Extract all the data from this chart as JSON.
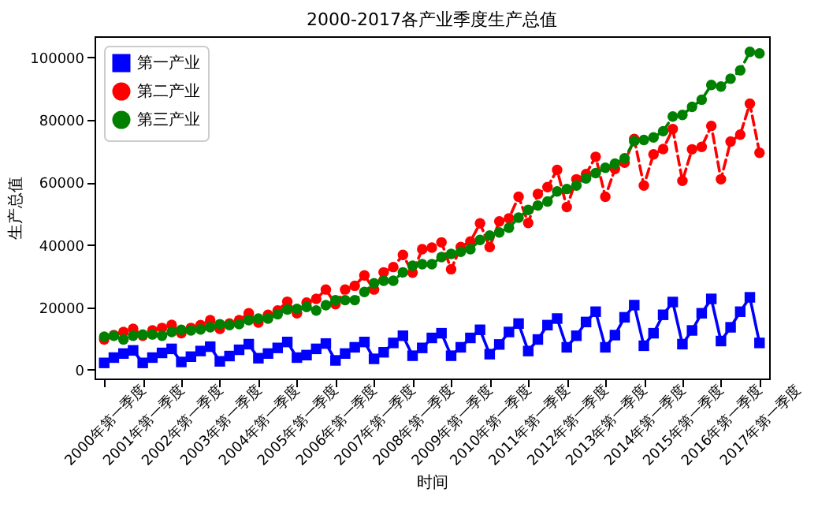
{
  "chart_data": {
    "type": "line",
    "title": "2000-2017各产业季度生产总值",
    "xlabel": "时间",
    "ylabel": "生产总值",
    "categories": [
      "2000年第一季度",
      null,
      null,
      null,
      "2001年第一季度",
      null,
      null,
      null,
      "2002年第一季度",
      null,
      null,
      null,
      "2003年第一季度",
      null,
      null,
      null,
      "2004年第一季度",
      null,
      null,
      null,
      "2005年第一季度",
      null,
      null,
      null,
      "2006年第一季度",
      null,
      null,
      null,
      "2007年第一季度",
      null,
      null,
      null,
      "2008年第一季度",
      null,
      null,
      null,
      "2009年第一季度",
      null,
      null,
      null,
      "2010年第一季度",
      null,
      null,
      null,
      "2011年第一季度",
      null,
      null,
      null,
      "2012年第一季度",
      null,
      null,
      null,
      "2013年第一季度",
      null,
      null,
      null,
      "2014年第一季度",
      null,
      null,
      null,
      "2015年第一季度",
      null,
      null,
      null,
      "2016年第一季度",
      null,
      null,
      null,
      "2017年第一季度"
    ],
    "series": [
      {
        "name": "第一产业",
        "color": "#0000ff",
        "marker": "square",
        "line_style": "solid",
        "values": [
          2200,
          3900,
          5200,
          6200,
          2200,
          3900,
          5400,
          6700,
          2500,
          4200,
          6000,
          7400,
          2700,
          4400,
          6400,
          8200,
          3700,
          5200,
          7000,
          8900,
          3900,
          4700,
          6700,
          8400,
          3000,
          5200,
          7200,
          8900,
          3500,
          5600,
          8600,
          10900,
          4500,
          7000,
          10200,
          11700,
          4500,
          7200,
          10200,
          12800,
          5000,
          8100,
          12100,
          14800,
          6000,
          9700,
          14300,
          16400,
          7200,
          10900,
          15300,
          18600,
          7200,
          11100,
          16800,
          20700,
          7700,
          11700,
          17600,
          21700,
          8200,
          12600,
          18100,
          22700,
          9200,
          13600,
          18600,
          23200,
          8600
        ]
      },
      {
        "name": "第二产业",
        "color": "#ff0000",
        "marker": "circle",
        "line_style": "dashed",
        "values": [
          9700,
          11100,
          12100,
          13100,
          10900,
          12600,
          13400,
          14400,
          11700,
          13400,
          14300,
          15900,
          13100,
          14800,
          15900,
          18100,
          15100,
          17600,
          19000,
          21800,
          18100,
          21500,
          22700,
          25700,
          21000,
          25700,
          26900,
          30200,
          25700,
          31200,
          32900,
          36800,
          31100,
          38600,
          39100,
          40800,
          32200,
          39300,
          41100,
          46900,
          39300,
          47500,
          48500,
          55400,
          47000,
          56300,
          58500,
          64000,
          52100,
          61000,
          62700,
          68200,
          55400,
          64300,
          66300,
          73900,
          59000,
          69000,
          70700,
          77100,
          60500,
          70600,
          71400,
          78100,
          61000,
          73100,
          75300,
          85200,
          69500
        ]
      },
      {
        "name": "第三产业",
        "color": "#008000",
        "marker": "circle",
        "line_style": "dashed",
        "values": [
          10600,
          10900,
          9700,
          10900,
          11300,
          11300,
          10900,
          12100,
          12800,
          12600,
          12900,
          13600,
          14600,
          14300,
          14600,
          15900,
          16400,
          16400,
          17800,
          19300,
          19500,
          20100,
          19000,
          20700,
          22300,
          22300,
          22300,
          24900,
          27700,
          28500,
          28500,
          31200,
          33300,
          33800,
          33800,
          36100,
          37100,
          37800,
          38600,
          41600,
          43000,
          44000,
          45500,
          48700,
          51200,
          52600,
          53900,
          57100,
          57900,
          59000,
          61300,
          63000,
          64700,
          66000,
          67700,
          73200,
          73600,
          74400,
          76400,
          81100,
          81600,
          84200,
          86500,
          91200,
          90700,
          93200,
          95900,
          101800,
          101300
        ]
      }
    ],
    "ylim": [
      -2800,
      106800
    ],
    "yticks": [
      0,
      20000,
      40000,
      60000,
      80000,
      100000
    ],
    "grid": false,
    "legend": "top left"
  }
}
